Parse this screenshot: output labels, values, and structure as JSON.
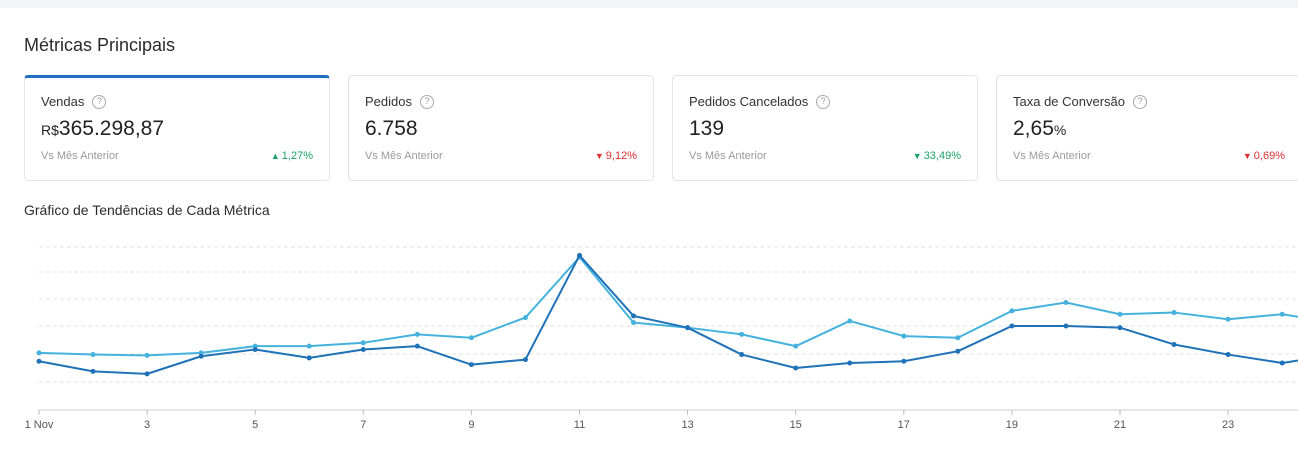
{
  "section_title": "Métricas Principais",
  "chart_title": "Gráfico de Tendências de Cada Métrica",
  "cards": [
    {
      "label": "Vendas",
      "prefix": "R$",
      "value": "365.298,87",
      "suffix": "",
      "compare": "Vs Mês Anterior",
      "delta": "1,27%",
      "direction": "up"
    },
    {
      "label": "Pedidos",
      "prefix": "",
      "value": "6.758",
      "suffix": "",
      "compare": "Vs Mês Anterior",
      "delta": "9,12%",
      "direction": "down"
    },
    {
      "label": "Pedidos Cancelados",
      "prefix": "",
      "value": "139",
      "suffix": "",
      "compare": "Vs Mês Anterior",
      "delta": "33,49%",
      "direction": "up"
    },
    {
      "label": "Taxa de Conversão",
      "prefix": "",
      "value": "2,65",
      "suffix": "%",
      "compare": "Vs Mês Anterior",
      "delta": "0,69%",
      "direction": "down"
    }
  ],
  "colors": {
    "up": "#1aa36a",
    "down": "#e02e2e",
    "accent": "#1e6fc2",
    "series_dark": "#1f72b8",
    "series_light": "#45b2de"
  },
  "chart_data": {
    "type": "line",
    "x": [
      "1 Nov",
      "2",
      "3",
      "4",
      "5",
      "6",
      "7",
      "8",
      "9",
      "10",
      "11",
      "12",
      "13",
      "14",
      "15",
      "16",
      "17",
      "18",
      "19",
      "20",
      "21",
      "22",
      "23",
      "24",
      "25"
    ],
    "xtick_labels": [
      "1 Nov",
      "3",
      "5",
      "7",
      "9",
      "11",
      "13",
      "15",
      "17",
      "19",
      "21",
      "23"
    ],
    "ylim": [
      0,
      100
    ],
    "grid": true,
    "series": [
      {
        "color": "#45b2de",
        "values": [
          34,
          33,
          32.5,
          34,
          38,
          38,
          40,
          45,
          43,
          55,
          91,
          52,
          49,
          45,
          38,
          53,
          44,
          43,
          59,
          64,
          57,
          58,
          54,
          57,
          52
        ]
      },
      {
        "color": "#1f72b8",
        "values": [
          29,
          23,
          21.5,
          32,
          36,
          31,
          36,
          38,
          27,
          30,
          92,
          56,
          49,
          33,
          25,
          28,
          29,
          35,
          50,
          50,
          49,
          39,
          33,
          28,
          33
        ]
      }
    ]
  }
}
